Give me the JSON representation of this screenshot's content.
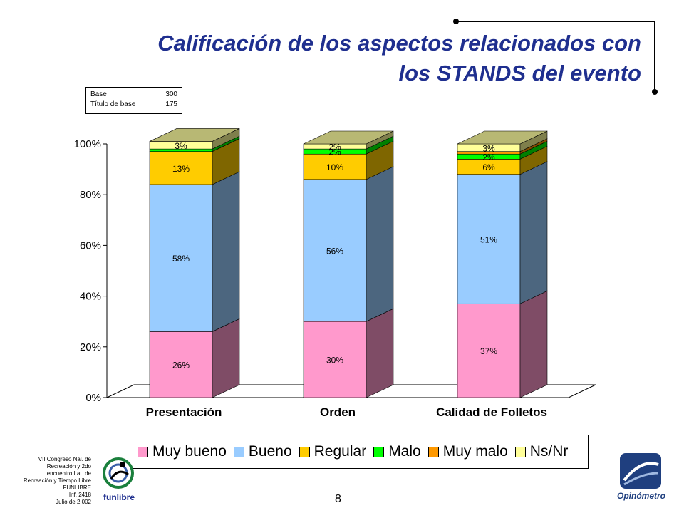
{
  "title": {
    "line1": "Calificación de los aspectos relacionados con",
    "line2": "los STANDS del evento"
  },
  "base_box": {
    "row1_label": "Base",
    "row1_value": "300",
    "row2_label": "Título de base",
    "row2_value": "175"
  },
  "footer": {
    "line1": "VII Congreso Nal. de",
    "line2": "Recreación y 2do",
    "line3": "encuentro Lat. de",
    "line4": "Recreación y Tiempo Libre",
    "line5": "FUNLIBRE",
    "line6": "Inf. 2418",
    "line7": "Julio de 2.002",
    "page_number": "8"
  },
  "logos": {
    "funlibre": "funlibre",
    "opinometro": "Opinómetro"
  },
  "chart_data": {
    "type": "bar",
    "stacked": true,
    "three_d": true,
    "categories": [
      "Presentación",
      "Orden",
      "Calidad de Folletos"
    ],
    "ylim": [
      0,
      100
    ],
    "yticks": [
      "0%",
      "20%",
      "40%",
      "60%",
      "80%",
      "100%"
    ],
    "legend_position": "bottom",
    "series": [
      {
        "name": "Muy bueno",
        "color": "#ff99cc",
        "side": "#7f4c66",
        "values": [
          26,
          30,
          37
        ],
        "labels": [
          "26%",
          "30%",
          "37%"
        ]
      },
      {
        "name": "Bueno",
        "color": "#99ccff",
        "side": "#4c667f",
        "values": [
          58,
          56,
          51
        ],
        "labels": [
          "58%",
          "56%",
          "51%"
        ]
      },
      {
        "name": "Regular",
        "color": "#ffcc00",
        "side": "#7f6600",
        "values": [
          13,
          10,
          6
        ],
        "labels": [
          "13%",
          "10%",
          "6%"
        ]
      },
      {
        "name": "Malo",
        "color": "#00ff00",
        "side": "#007f00",
        "values": [
          1,
          2,
          2
        ],
        "labels": [
          "",
          "2%",
          "2%"
        ]
      },
      {
        "name": "Muy malo",
        "color": "#ff9900",
        "side": "#7f4c00",
        "values": [
          0,
          0,
          1
        ],
        "labels": [
          "",
          "",
          ""
        ]
      },
      {
        "name": "Ns/Nr",
        "color": "#ffff99",
        "side": "#7f7f4c",
        "values": [
          3,
          2,
          3
        ],
        "labels": [
          "3%",
          "2%",
          "3%"
        ]
      }
    ]
  }
}
